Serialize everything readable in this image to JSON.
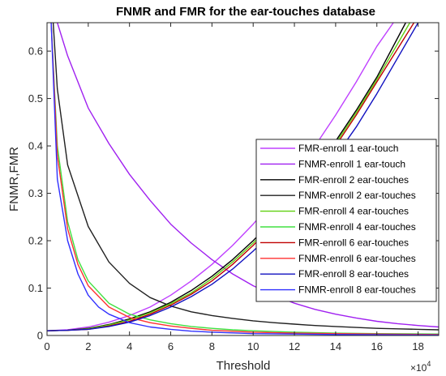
{
  "chart_data": {
    "type": "line",
    "title": "FNMR and FMR for the ear-touches database",
    "xlabel": "Threshold",
    "ylabel": "FNMR,FMR",
    "x_multiplier_label": "×10",
    "x_multiplier_exp": "4",
    "xlim": [
      0,
      19
    ],
    "ylim": [
      0,
      0.66
    ],
    "xticks": [
      0,
      2,
      4,
      6,
      8,
      10,
      12,
      14,
      16,
      18
    ],
    "yticks": [
      0,
      0.1,
      0.2,
      0.3,
      0.4,
      0.5,
      0.6
    ],
    "xtick_labels": [
      "0",
      "2",
      "4",
      "6",
      "8",
      "10",
      "12",
      "14",
      "16",
      "18"
    ],
    "ytick_labels": [
      "0",
      "0.1",
      "0.2",
      "0.3",
      "0.4",
      "0.5",
      "0.6"
    ],
    "grid": false,
    "legend_position": "right",
    "series": [
      {
        "name": "FMR-enroll 1 ear-touch",
        "color": "#bf40ff",
        "x": [
          0,
          1,
          2,
          3,
          4,
          5,
          6,
          7,
          8,
          9,
          10,
          11,
          12,
          13,
          14,
          15,
          16,
          16.8
        ],
        "y": [
          0.01,
          0.012,
          0.018,
          0.028,
          0.042,
          0.06,
          0.085,
          0.115,
          0.15,
          0.19,
          0.235,
          0.285,
          0.34,
          0.4,
          0.465,
          0.535,
          0.61,
          0.66
        ]
      },
      {
        "name": "FNMR-enroll 1 ear-touch",
        "color": "#a020f0",
        "x": [
          0.5,
          1,
          2,
          3,
          4,
          5,
          6,
          7,
          8,
          9,
          10,
          11,
          12,
          13,
          14,
          15,
          16,
          17,
          18,
          19
        ],
        "y": [
          0.66,
          0.59,
          0.48,
          0.405,
          0.34,
          0.285,
          0.235,
          0.195,
          0.16,
          0.13,
          0.105,
          0.085,
          0.068,
          0.055,
          0.045,
          0.037,
          0.03,
          0.025,
          0.021,
          0.018
        ]
      },
      {
        "name": "FMR-enroll 2 ear-touches",
        "color": "#000000",
        "x": [
          0,
          1,
          2,
          3,
          4,
          5,
          6,
          7,
          8,
          9,
          10,
          11,
          12,
          13,
          14,
          15,
          16,
          17.4
        ],
        "y": [
          0.01,
          0.011,
          0.015,
          0.023,
          0.035,
          0.05,
          0.07,
          0.095,
          0.125,
          0.16,
          0.2,
          0.245,
          0.295,
          0.35,
          0.41,
          0.475,
          0.545,
          0.66
        ]
      },
      {
        "name": "FNMR-enroll 2 ear-touches",
        "color": "#202020",
        "x": [
          0.3,
          0.5,
          1,
          2,
          3,
          4,
          5,
          6,
          7,
          8,
          9,
          10,
          11,
          12,
          13,
          14,
          15,
          16,
          17,
          18,
          19
        ],
        "y": [
          0.66,
          0.52,
          0.36,
          0.23,
          0.155,
          0.11,
          0.08,
          0.062,
          0.05,
          0.042,
          0.036,
          0.031,
          0.027,
          0.024,
          0.021,
          0.019,
          0.017,
          0.015,
          0.014,
          0.013,
          0.012
        ]
      },
      {
        "name": "FMR-enroll 4 ear-touches",
        "color": "#60d010",
        "x": [
          0,
          1,
          2,
          3,
          4,
          5,
          6,
          7,
          8,
          9,
          10,
          11,
          12,
          13,
          14,
          15,
          16,
          17.6
        ],
        "y": [
          0.01,
          0.011,
          0.014,
          0.022,
          0.033,
          0.048,
          0.067,
          0.09,
          0.12,
          0.155,
          0.195,
          0.24,
          0.29,
          0.345,
          0.405,
          0.47,
          0.54,
          0.66
        ]
      },
      {
        "name": "FNMR-enroll 4 ear-touches",
        "color": "#40e040",
        "x": [
          0.2,
          0.5,
          1,
          1.5,
          2,
          3,
          4,
          5,
          6,
          7,
          8,
          9,
          10,
          12,
          14,
          16,
          19
        ],
        "y": [
          0.66,
          0.4,
          0.24,
          0.16,
          0.115,
          0.068,
          0.045,
          0.033,
          0.025,
          0.019,
          0.015,
          0.012,
          0.01,
          0.007,
          0.005,
          0.004,
          0.003
        ]
      },
      {
        "name": "FMR-enroll 6 ear-touches",
        "color": "#c00000",
        "x": [
          0,
          1,
          2,
          3,
          4,
          5,
          6,
          7,
          8,
          9,
          10,
          11,
          12,
          13,
          14,
          15,
          16,
          17.8
        ],
        "y": [
          0.01,
          0.011,
          0.013,
          0.02,
          0.03,
          0.045,
          0.064,
          0.087,
          0.115,
          0.15,
          0.19,
          0.235,
          0.285,
          0.34,
          0.4,
          0.465,
          0.535,
          0.66
        ]
      },
      {
        "name": "FNMR-enroll 6 ear-touches",
        "color": "#ff3030",
        "x": [
          0.2,
          0.5,
          1,
          1.5,
          2,
          3,
          4,
          5,
          6,
          7,
          8,
          10,
          12,
          14,
          16,
          19
        ],
        "y": [
          0.66,
          0.38,
          0.225,
          0.15,
          0.105,
          0.06,
          0.038,
          0.027,
          0.02,
          0.015,
          0.011,
          0.007,
          0.005,
          0.004,
          0.003,
          0.002
        ]
      },
      {
        "name": "FMR-enroll 8 ear-touches",
        "color": "#1010c0",
        "x": [
          0,
          1,
          2,
          3,
          4,
          5,
          6,
          7,
          8,
          9,
          10,
          11,
          12,
          13,
          14,
          15,
          16,
          18
        ],
        "y": [
          0.01,
          0.011,
          0.013,
          0.019,
          0.028,
          0.042,
          0.06,
          0.082,
          0.108,
          0.14,
          0.178,
          0.22,
          0.268,
          0.32,
          0.378,
          0.44,
          0.51,
          0.66
        ]
      },
      {
        "name": "FNMR-enroll 8 ear-touches",
        "color": "#3030ff",
        "x": [
          0.2,
          0.5,
          1,
          1.5,
          2,
          2.5,
          3,
          4,
          5,
          6,
          7,
          8,
          10,
          12,
          14,
          16,
          19
        ],
        "y": [
          0.66,
          0.33,
          0.2,
          0.13,
          0.085,
          0.06,
          0.045,
          0.027,
          0.018,
          0.013,
          0.009,
          0.007,
          0.004,
          0.003,
          0.002,
          0.0015,
          0.001
        ]
      }
    ]
  }
}
